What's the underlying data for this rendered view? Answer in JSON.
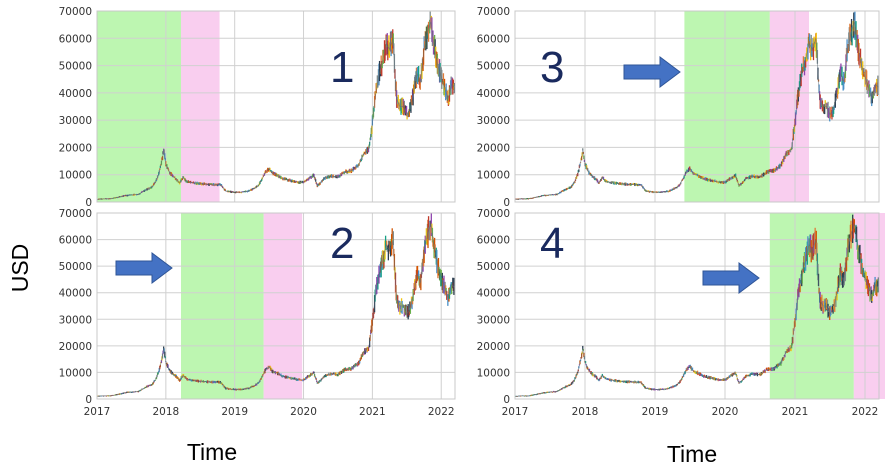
{
  "figure": {
    "ylabel": "USD",
    "xlabel_left": "Time",
    "xlabel_right": "Time"
  },
  "chart_data": [
    {
      "type": "line",
      "panel_label": "1",
      "ylabel": "USD",
      "xlabel": "Time",
      "xlim": [
        2017.0,
        2022.2
      ],
      "ylim": [
        0,
        70000
      ],
      "grid": true,
      "x_ticks": [
        "2017",
        "2018",
        "2019",
        "2020",
        "2021",
        "2022"
      ],
      "y_ticks": [
        "0",
        "10000",
        "20000",
        "30000",
        "40000",
        "50000",
        "60000",
        "70000"
      ],
      "train_window": [
        2017.0,
        2018.22
      ],
      "test_window": [
        2018.22,
        2018.78
      ],
      "arrow": false
    },
    {
      "type": "line",
      "panel_label": "2",
      "ylabel": "USD",
      "xlabel": "Time",
      "xlim": [
        2017.0,
        2022.2
      ],
      "ylim": [
        0,
        70000
      ],
      "grid": true,
      "x_ticks": [
        "2017",
        "2018",
        "2019",
        "2020",
        "2021",
        "2022"
      ],
      "y_ticks": [
        "0",
        "10000",
        "20000",
        "30000",
        "40000",
        "50000",
        "60000",
        "70000"
      ],
      "train_window": [
        2018.22,
        2019.42
      ],
      "test_window": [
        2019.42,
        2019.98
      ],
      "arrow": true
    },
    {
      "type": "line",
      "panel_label": "3",
      "ylabel": "USD",
      "xlabel": "Time",
      "xlim": [
        2017.0,
        2022.2
      ],
      "ylim": [
        0,
        70000
      ],
      "grid": true,
      "x_ticks": [
        "2017",
        "2018",
        "2019",
        "2020",
        "2021",
        "2022"
      ],
      "y_ticks": [
        "0",
        "10000",
        "20000",
        "30000",
        "40000",
        "50000",
        "60000",
        "70000"
      ],
      "train_window": [
        2019.42,
        2020.64
      ],
      "test_window": [
        2020.64,
        2021.2
      ],
      "arrow": true
    },
    {
      "type": "line",
      "panel_label": "4",
      "ylabel": "USD",
      "xlabel": "Time",
      "xlim": [
        2017.0,
        2022.2
      ],
      "ylim": [
        0,
        70000
      ],
      "grid": true,
      "x_ticks": [
        "2017",
        "2018",
        "2019",
        "2020",
        "2021",
        "2022"
      ],
      "y_ticks": [
        "0",
        "10000",
        "20000",
        "30000",
        "40000",
        "50000",
        "60000",
        "70000"
      ],
      "train_window": [
        2020.64,
        2021.84
      ],
      "test_window": [
        2021.84,
        2022.4
      ],
      "arrow": true
    }
  ],
  "price_series": {
    "x": [
      2017.0,
      2017.1,
      2017.2,
      2017.3,
      2017.4,
      2017.5,
      2017.6,
      2017.7,
      2017.8,
      2017.85,
      2017.9,
      2017.95,
      2017.97,
      2018.0,
      2018.05,
      2018.1,
      2018.15,
      2018.2,
      2018.25,
      2018.3,
      2018.4,
      2018.5,
      2018.6,
      2018.7,
      2018.8,
      2018.87,
      2018.95,
      2019.0,
      2019.1,
      2019.2,
      2019.3,
      2019.35,
      2019.4,
      2019.45,
      2019.5,
      2019.55,
      2019.6,
      2019.7,
      2019.8,
      2019.9,
      2020.0,
      2020.1,
      2020.15,
      2020.2,
      2020.25,
      2020.3,
      2020.4,
      2020.5,
      2020.6,
      2020.7,
      2020.8,
      2020.87,
      2020.95,
      2021.0,
      2021.05,
      2021.1,
      2021.15,
      2021.2,
      2021.25,
      2021.3,
      2021.35,
      2021.4,
      2021.45,
      2021.5,
      2021.55,
      2021.6,
      2021.65,
      2021.7,
      2021.75,
      2021.8,
      2021.85,
      2021.9,
      2021.95,
      2022.0,
      2022.05,
      2022.1,
      2022.15,
      2022.2
    ],
    "y": [
      1000,
      1150,
      1200,
      1700,
      2300,
      2600,
      2800,
      4300,
      5500,
      7200,
      10500,
      16000,
      19200,
      14000,
      11000,
      9500,
      8500,
      7000,
      9000,
      7500,
      7000,
      6700,
      6500,
      6400,
      6300,
      4000,
      3700,
      3600,
      3600,
      4000,
      5200,
      6200,
      8500,
      11000,
      12200,
      10500,
      10000,
      8500,
      8000,
      7300,
      7200,
      9000,
      9800,
      6000,
      7000,
      8600,
      9500,
      9200,
      11000,
      11500,
      13500,
      17500,
      19500,
      29000,
      40000,
      47000,
      52000,
      58000,
      56000,
      60000,
      38000,
      35000,
      35000,
      32000,
      34000,
      40000,
      47000,
      44000,
      56000,
      62000,
      66000,
      57000,
      50000,
      46000,
      42000,
      38000,
      43000,
      42000
    ]
  }
}
